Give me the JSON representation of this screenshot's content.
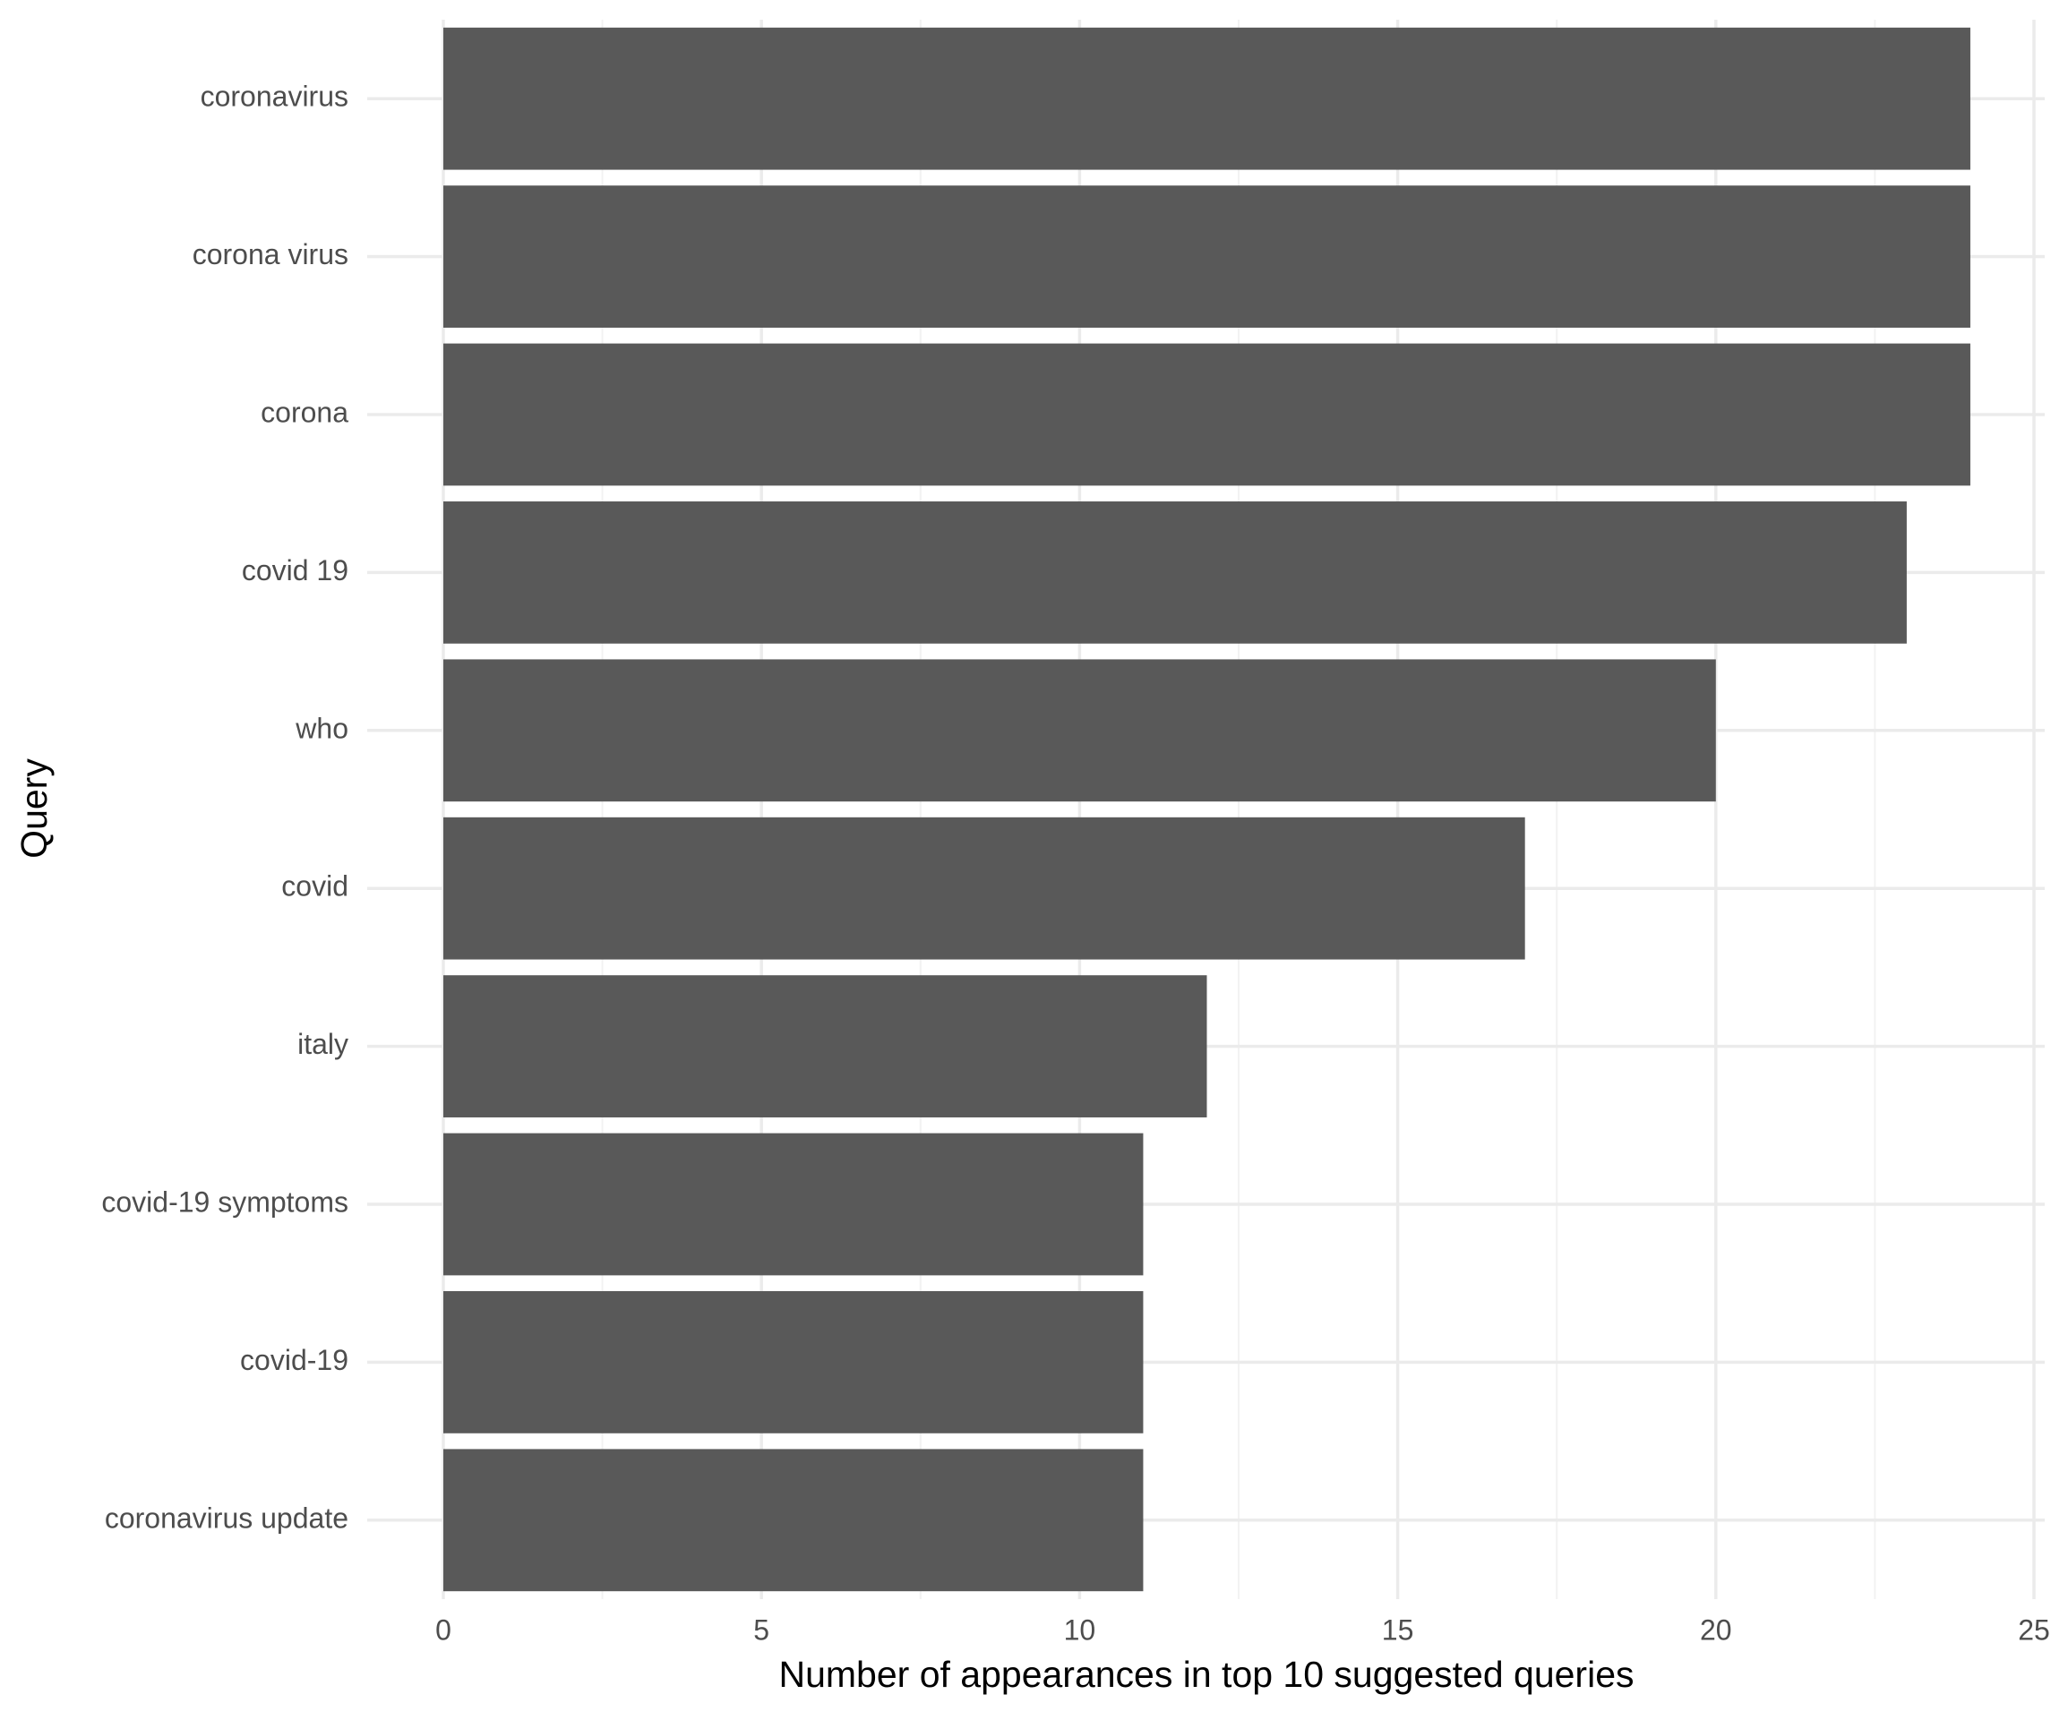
{
  "chart_data": {
    "type": "bar",
    "orientation": "horizontal",
    "categories": [
      "coronavirus",
      "corona virus",
      "corona",
      "covid 19",
      "who",
      "covid",
      "italy",
      "covid-19 symptoms",
      "covid-19",
      "coronavirus update"
    ],
    "values": [
      24,
      24,
      24,
      23,
      20,
      17,
      12,
      11,
      11,
      11
    ],
    "color": "#595959",
    "x_label": "Number of appearances in top 10 suggested queries",
    "y_label": "Query",
    "xlim": [
      0,
      25
    ],
    "xticks": [
      0,
      5,
      10,
      15,
      20,
      25
    ],
    "grid": true
  }
}
